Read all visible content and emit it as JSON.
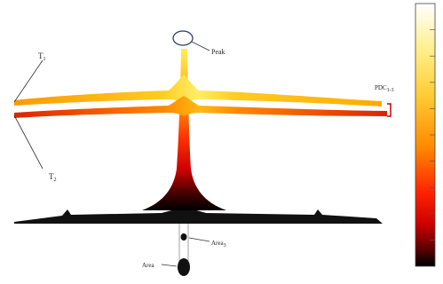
{
  "labels": {
    "t1": "T",
    "t1_sub": "1",
    "t2": "T",
    "t2_sub": "2",
    "peak": "Peak",
    "pdc": "PDC",
    "pdc_sub": "1-3",
    "area_small": "Area",
    "area_small_sub": "3",
    "area_large": "Area"
  },
  "colorbar": {
    "colors": [
      "#ffffff",
      "#ffee88",
      "#ffcc33",
      "#ff8800",
      "#ff2200",
      "#cc0000",
      "#600000",
      "#000000"
    ],
    "tick_count": 10
  }
}
